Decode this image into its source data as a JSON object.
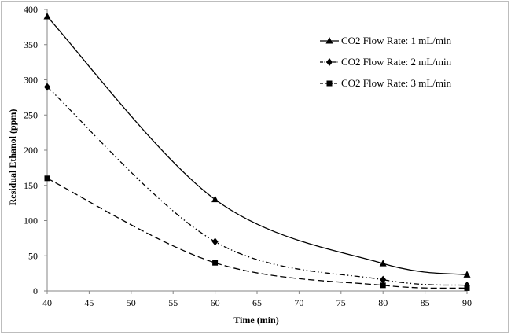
{
  "chart_data": {
    "type": "line",
    "title": "",
    "xlabel": "Time (min)",
    "ylabel": "Residual Ethanol (ppm)",
    "xlim": [
      40,
      90
    ],
    "ylim": [
      0,
      400
    ],
    "x_ticks": [
      40,
      45,
      50,
      55,
      60,
      65,
      70,
      75,
      80,
      85,
      90
    ],
    "y_ticks": [
      0,
      50,
      100,
      150,
      200,
      250,
      300,
      350,
      400
    ],
    "grid": false,
    "legend_position": "top-right",
    "series": [
      {
        "name": "CO2 Flow Rate: 1 mL/min",
        "marker": "triangle",
        "dash": "solid",
        "x": [
          40,
          60,
          80,
          90
        ],
        "y": [
          390,
          130,
          39,
          23
        ]
      },
      {
        "name": "CO2 Flow Rate: 2 mL/min",
        "marker": "diamond",
        "dash": "dash-dot-dot",
        "x": [
          40,
          60,
          80,
          90
        ],
        "y": [
          290,
          70,
          16,
          8
        ]
      },
      {
        "name": "CO2 Flow Rate: 3 mL/min",
        "marker": "square",
        "dash": "dashed",
        "x": [
          40,
          60,
          80,
          90
        ],
        "y": [
          160,
          40,
          8,
          4
        ]
      }
    ]
  }
}
